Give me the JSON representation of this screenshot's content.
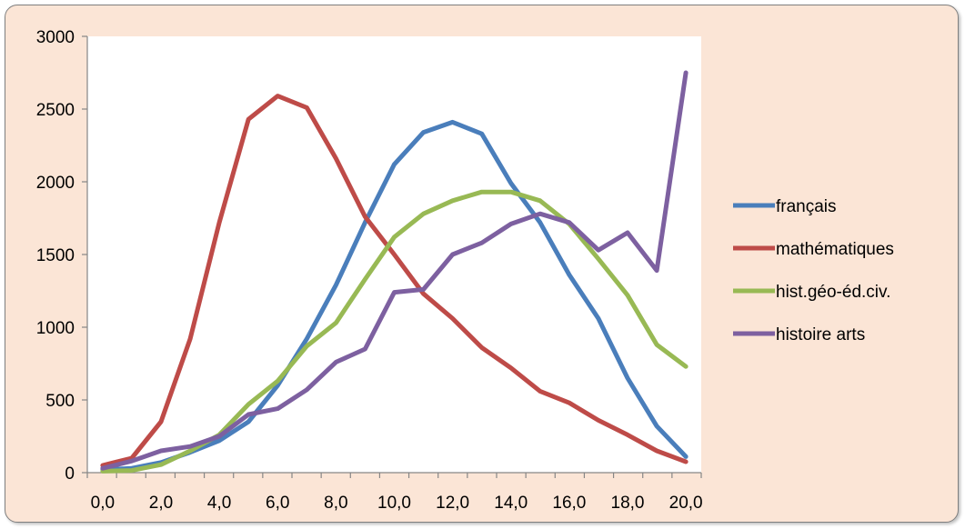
{
  "chart_data": {
    "type": "line",
    "title": "",
    "xlabel": "",
    "ylabel": "",
    "x": [
      0,
      1,
      2,
      3,
      4,
      5,
      6,
      7,
      8,
      9,
      10,
      11,
      12,
      13,
      14,
      15,
      16,
      17,
      18,
      19,
      20
    ],
    "x_tick_labels": [
      "0,0",
      "2,0",
      "4,0",
      "6,0",
      "8,0",
      "10,0",
      "12,0",
      "14,0",
      "16,0",
      "18,0",
      "20,0"
    ],
    "x_tick_positions": [
      0,
      2,
      4,
      6,
      8,
      10,
      12,
      14,
      16,
      18,
      20
    ],
    "ylim": [
      0,
      3000
    ],
    "y_ticks": [
      0,
      500,
      1000,
      1500,
      2000,
      2500,
      3000
    ],
    "grid": false,
    "legend_position": "right",
    "series": [
      {
        "name": "français",
        "color": "#4a7ebb",
        "values": [
          20,
          30,
          70,
          140,
          220,
          350,
          600,
          920,
          1290,
          1720,
          2120,
          2340,
          2410,
          2330,
          1990,
          1720,
          1360,
          1060,
          650,
          320,
          110
        ]
      },
      {
        "name": "mathématiques",
        "color": "#be4b48",
        "values": [
          50,
          100,
          350,
          920,
          1720,
          2430,
          2590,
          2510,
          2160,
          1760,
          1500,
          1230,
          1060,
          860,
          720,
          560,
          480,
          360,
          260,
          150,
          75
        ]
      },
      {
        "name": "hist.géo-éd.civ.",
        "color": "#98b954",
        "values": [
          10,
          15,
          55,
          150,
          260,
          470,
          630,
          870,
          1030,
          1330,
          1620,
          1780,
          1870,
          1930,
          1930,
          1870,
          1710,
          1470,
          1220,
          880,
          730
        ]
      },
      {
        "name": "histoire arts",
        "color": "#7d60a0",
        "values": [
          30,
          80,
          150,
          180,
          250,
          400,
          440,
          570,
          760,
          850,
          1240,
          1260,
          1500,
          1580,
          1710,
          1780,
          1720,
          1530,
          1650,
          1390,
          2750
        ]
      }
    ]
  }
}
